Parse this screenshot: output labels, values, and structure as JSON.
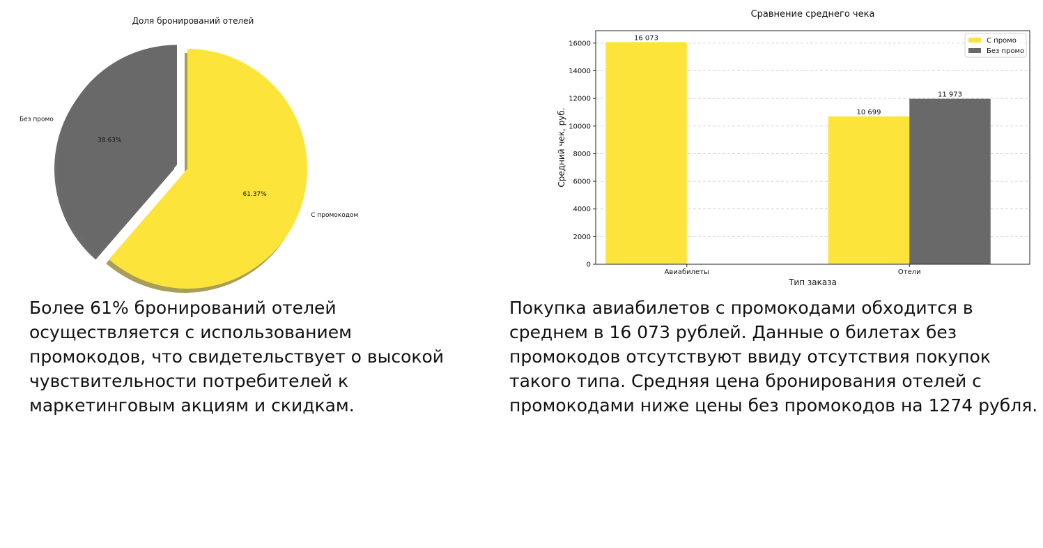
{
  "chart_data": [
    {
      "type": "pie",
      "title": "Доля бронирований отелей",
      "labels": [
        "С промокодом",
        "Без промо"
      ],
      "values": [
        61.37,
        38.63
      ],
      "value_labels": [
        "61.37%",
        "38.63%"
      ],
      "colors": [
        "#FDE43A",
        "#696969"
      ],
      "shadow": true,
      "exploded": "Без промо"
    },
    {
      "type": "bar",
      "title": "Сравнение среднего чека",
      "xlabel": "Тип заказа",
      "ylabel": "Средний чек, руб.",
      "categories": [
        "Авиабилеты",
        "Отели"
      ],
      "series": [
        {
          "name": "С промо",
          "values": [
            16073,
            10699
          ],
          "value_labels": [
            "16 073",
            "10 699"
          ],
          "color": "#FDE43A"
        },
        {
          "name": "Без промо",
          "values": [
            null,
            11973
          ],
          "value_labels": [
            null,
            "11 973"
          ],
          "color": "#696969"
        }
      ],
      "ylim": [
        0,
        16900
      ],
      "yticks": [
        0,
        2000,
        4000,
        6000,
        8000,
        10000,
        12000,
        14000,
        16000
      ],
      "grid": "horizontal dashed",
      "legend": "top-right"
    }
  ],
  "captions": {
    "left": "Более 61% бронирований отелей осуществляется с использованием промокодов, что свидетельствует о высокой чувствительности потребителей к маркетинговым акциям и скидкам.",
    "right": "Покупка авиабилетов с промокодами обходится в среднем в 16 073 рублей. Данные о билетах без промокодов отсутствуют ввиду отсутствия покупок такого типа. Средняя цена бронирования отелей с промокодами ниже цены без промокодов на 1274 рубля."
  }
}
